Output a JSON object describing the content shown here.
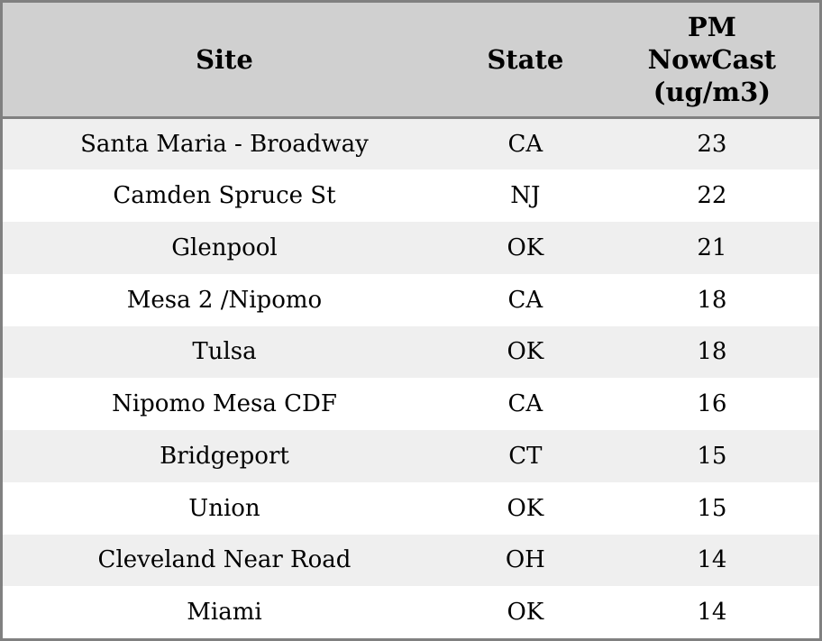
{
  "colors": {
    "outer_border": "#808080",
    "header_separator": "#808080",
    "header_bg": "#d0d0d0",
    "row_alt_bg": "#efefef",
    "row_bg": "#ffffff",
    "text": "#000000"
  },
  "chart_data": {
    "type": "table",
    "columns": [
      "Site",
      "State",
      "PM\nNowCast\n(ug/m3)"
    ],
    "rows": [
      {
        "site": "Santa Maria - Broadway",
        "state": "CA",
        "pm": "23"
      },
      {
        "site": "Camden Spruce St",
        "state": "NJ",
        "pm": "22"
      },
      {
        "site": "Glenpool",
        "state": "OK",
        "pm": "21"
      },
      {
        "site": "Mesa 2 /Nipomo",
        "state": "CA",
        "pm": "18"
      },
      {
        "site": "Tulsa",
        "state": "OK",
        "pm": "18"
      },
      {
        "site": "Nipomo Mesa CDF",
        "state": "CA",
        "pm": "16"
      },
      {
        "site": "Bridgeport",
        "state": "CT",
        "pm": "15"
      },
      {
        "site": "Union",
        "state": "OK",
        "pm": "15"
      },
      {
        "site": "Cleveland Near Road",
        "state": "OH",
        "pm": "14"
      },
      {
        "site": "Miami",
        "state": "OK",
        "pm": "14"
      }
    ]
  }
}
